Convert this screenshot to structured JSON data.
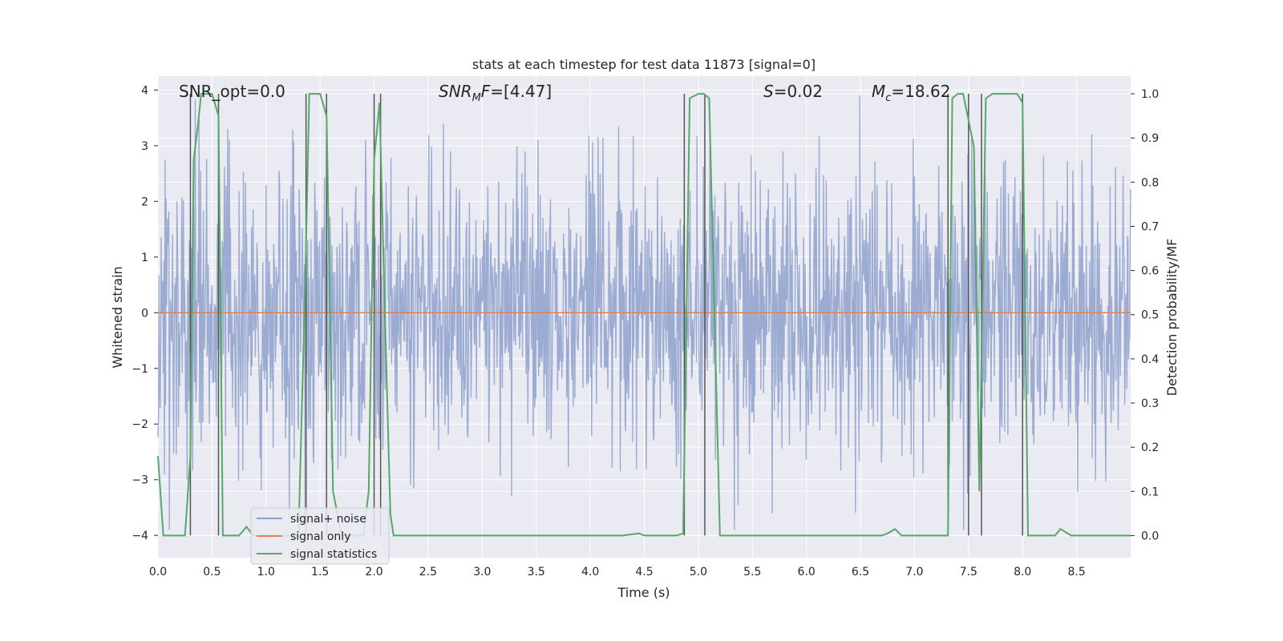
{
  "chart_data": {
    "type": "line",
    "title": "stats at each timestep for test data 11873 [signal=0]",
    "xlabel": "Time (s)",
    "ylabel": "Whitened strain",
    "ylabel_right": "Detection probability/MF",
    "xlim": [
      0.0,
      9.0
    ],
    "ylim": [
      -4.4,
      4.25
    ],
    "ylim_right": [
      -0.05,
      1.04
    ],
    "x_ticks": [
      "0.0",
      "0.5",
      "1.0",
      "1.5",
      "2.0",
      "2.5",
      "3.0",
      "3.5",
      "4.0",
      "4.5",
      "5.0",
      "5.5",
      "6.0",
      "6.5",
      "7.0",
      "7.5",
      "8.0",
      "8.5"
    ],
    "y_ticks": [
      "−4",
      "−3",
      "−2",
      "−1",
      "0",
      "1",
      "2",
      "3",
      "4"
    ],
    "y_ticks_right": [
      "0.0",
      "0.1",
      "0.2",
      "0.3",
      "0.4",
      "0.5",
      "0.6",
      "0.7",
      "0.8",
      "0.9",
      "1.0"
    ],
    "grid": true,
    "legend_position": "lower-left",
    "colors": {
      "background": "#eaeaf2",
      "noise": "#8da0cb",
      "signal_only": "#dd8452",
      "statistics": "#55a868",
      "vlines": "#555555"
    },
    "annotations": [
      "SNR_opt=0.0",
      "SNR_MF=[4.47]",
      "S=0.02",
      "M_c=18.62"
    ],
    "series": [
      {
        "name": "signal+ noise",
        "note_amplitude": "dense noise, roughly ±1.5 with spikes up to about ±3.9"
      },
      {
        "name": "signal only",
        "constant": 0.0
      },
      {
        "name": "signal statistics",
        "x": [
          0.0,
          0.05,
          0.06,
          0.25,
          0.3,
          0.33,
          0.37,
          0.4,
          0.5,
          0.56,
          0.6,
          0.62,
          0.7,
          0.75,
          0.82,
          0.88,
          0.95,
          1.0,
          1.05,
          1.1,
          1.2,
          1.3,
          1.36,
          1.4,
          1.45,
          1.5,
          1.56,
          1.62,
          1.7,
          1.9,
          1.95,
          2.0,
          2.05,
          2.1,
          2.15,
          2.18,
          2.3,
          4.3,
          4.45,
          4.5,
          4.6,
          4.8,
          4.86,
          4.92,
          5.0,
          5.05,
          5.1,
          5.2,
          5.4,
          6.7,
          6.75,
          6.82,
          6.88,
          7.0,
          7.2,
          7.31,
          7.35,
          7.4,
          7.45,
          7.55,
          7.6,
          7.66,
          7.72,
          7.8,
          7.95,
          8.0,
          8.05,
          8.1,
          8.2,
          8.3,
          8.35,
          8.45,
          8.6,
          9.0
        ],
        "values": [
          0.18,
          0.0,
          0.0,
          0.0,
          0.18,
          0.85,
          0.93,
          1.0,
          1.0,
          0.95,
          0.0,
          0.0,
          0.0,
          0.0,
          0.02,
          0.0,
          0.0,
          0.0,
          0.0,
          0.0,
          0.0,
          0.0,
          0.55,
          1.0,
          1.0,
          1.0,
          0.95,
          0.1,
          0.0,
          0.0,
          0.1,
          0.85,
          0.98,
          0.5,
          0.05,
          0.0,
          0.0,
          0.0,
          0.005,
          0.0,
          0.0,
          0.0,
          0.005,
          0.99,
          1.0,
          1.0,
          0.99,
          0.0,
          0.0,
          0.0,
          0.005,
          0.015,
          0.0,
          0.0,
          0.0,
          0.0,
          0.99,
          1.0,
          1.0,
          0.88,
          0.1,
          0.99,
          1.0,
          1.0,
          1.0,
          0.98,
          0.0,
          0.0,
          0.0,
          0.0,
          0.015,
          0.0,
          0.0,
          0.0
        ]
      }
    ],
    "vertical_lines_x": [
      0.3,
      0.56,
      1.37,
      1.56,
      2.0,
      2.06,
      4.87,
      5.06,
      7.31,
      7.5,
      7.62,
      8.0
    ]
  }
}
